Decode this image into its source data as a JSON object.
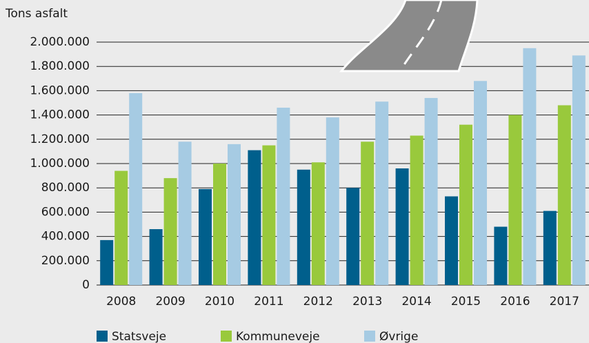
{
  "chart_data": {
    "type": "bar",
    "y_label": "Tons asfalt",
    "categories": [
      "2008",
      "2009",
      "2010",
      "2011",
      "2012",
      "2013",
      "2014",
      "2015",
      "2016",
      "2017"
    ],
    "series": [
      {
        "name": "Statsveje",
        "color": "#005f8c",
        "values": [
          370000,
          460000,
          790000,
          1110000,
          950000,
          800000,
          960000,
          730000,
          480000,
          610000
        ]
      },
      {
        "name": "Kommuneveje",
        "color": "#99c93c",
        "values": [
          940000,
          880000,
          1000000,
          1150000,
          1010000,
          1180000,
          1230000,
          1320000,
          1400000,
          1480000
        ]
      },
      {
        "name": "Øvrige",
        "color": "#a6cbe3",
        "values": [
          1580000,
          1180000,
          1160000,
          1460000,
          1380000,
          1510000,
          1540000,
          1680000,
          1950000,
          1890000
        ]
      }
    ],
    "ylim": [
      0,
      2000000
    ],
    "yticks": [
      0,
      {
        "value": 200000,
        "label": "200.000"
      },
      {
        "value": 400000,
        "label": "400.000"
      },
      {
        "value": 600000,
        "label": "600.000"
      },
      {
        "value": 800000,
        "label": "800.000"
      },
      {
        "value": 1000000,
        "label": "1.000.000"
      },
      {
        "value": 1200000,
        "label": "1.200.000"
      },
      {
        "value": 1400000,
        "label": "1.400.000"
      },
      {
        "value": 1600000,
        "label": "1.600.000"
      },
      {
        "value": 1800000,
        "label": "1.800.000"
      },
      {
        "value": 2000000,
        "label": "2.000.000"
      }
    ],
    "grid": true
  }
}
